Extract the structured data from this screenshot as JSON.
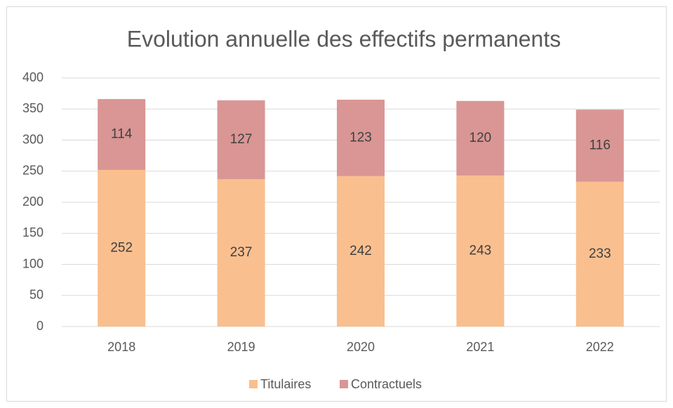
{
  "chart_data": {
    "type": "bar",
    "stacked": true,
    "title": "Evolution annuelle des effectifs permanents",
    "categories": [
      "2018",
      "2019",
      "2020",
      "2021",
      "2022"
    ],
    "series": [
      {
        "name": "Titulaires",
        "color": "#f9bf8f",
        "values": [
          252,
          237,
          242,
          243,
          233
        ]
      },
      {
        "name": "Contractuels",
        "color": "#d99694",
        "values": [
          114,
          127,
          123,
          120,
          116
        ]
      }
    ],
    "ylim": [
      0,
      400
    ],
    "yticks": [
      0,
      50,
      100,
      150,
      200,
      250,
      300,
      350,
      400
    ],
    "grid": true,
    "legend": "bottom"
  }
}
